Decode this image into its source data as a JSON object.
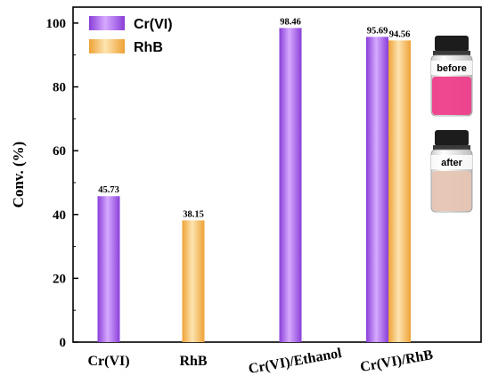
{
  "chart_data": {
    "type": "bar",
    "title": "",
    "xlabel": "",
    "ylabel": "Conv. (%)",
    "ylim": [
      0,
      105
    ],
    "yticks": [
      0,
      20,
      40,
      60,
      80,
      100
    ],
    "grid": false,
    "legend_position": "top-left",
    "categories": [
      "Cr(VI)",
      "RhB",
      "Cr(VI)/Ethanol",
      "Cr(VI)/RhB"
    ],
    "series": [
      {
        "name": "Cr(VI)",
        "color": "#b070ee",
        "values": [
          45.73,
          null,
          98.46,
          95.69
        ],
        "labels": [
          "45.73",
          "",
          "98.46",
          "95.69"
        ]
      },
      {
        "name": "RhB",
        "color": "#f5b84a",
        "values": [
          null,
          38.15,
          null,
          94.56
        ],
        "labels": [
          "",
          "38.15",
          "",
          "94.56"
        ]
      }
    ]
  },
  "inset": {
    "vials": [
      {
        "label": "before",
        "liquid_color": "#ee3e8a"
      },
      {
        "label": "after",
        "liquid_color": "#e6c4b2"
      }
    ]
  }
}
